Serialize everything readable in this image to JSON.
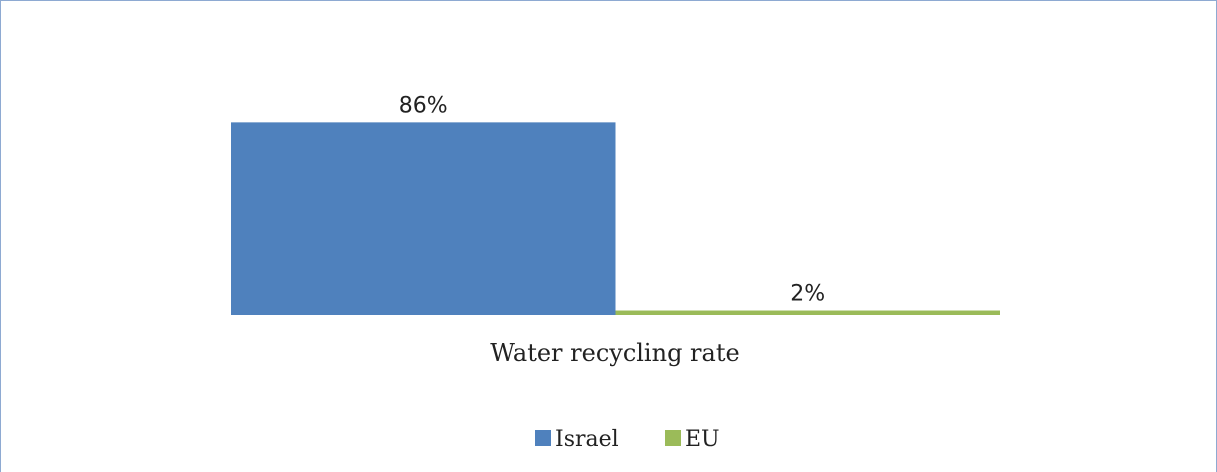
{
  "chart_data": {
    "type": "bar",
    "categories": [
      "Water recycling rate"
    ],
    "series": [
      {
        "name": "Israel",
        "values": [
          86
        ],
        "color": "#4f81bd",
        "data_label": "86%"
      },
      {
        "name": "EU",
        "values": [
          2
        ],
        "color": "#9bbb59",
        "data_label": "2%"
      }
    ],
    "ylim": [
      0,
      100
    ],
    "unit": "%",
    "grid": false,
    "legend_position": "bottom"
  }
}
